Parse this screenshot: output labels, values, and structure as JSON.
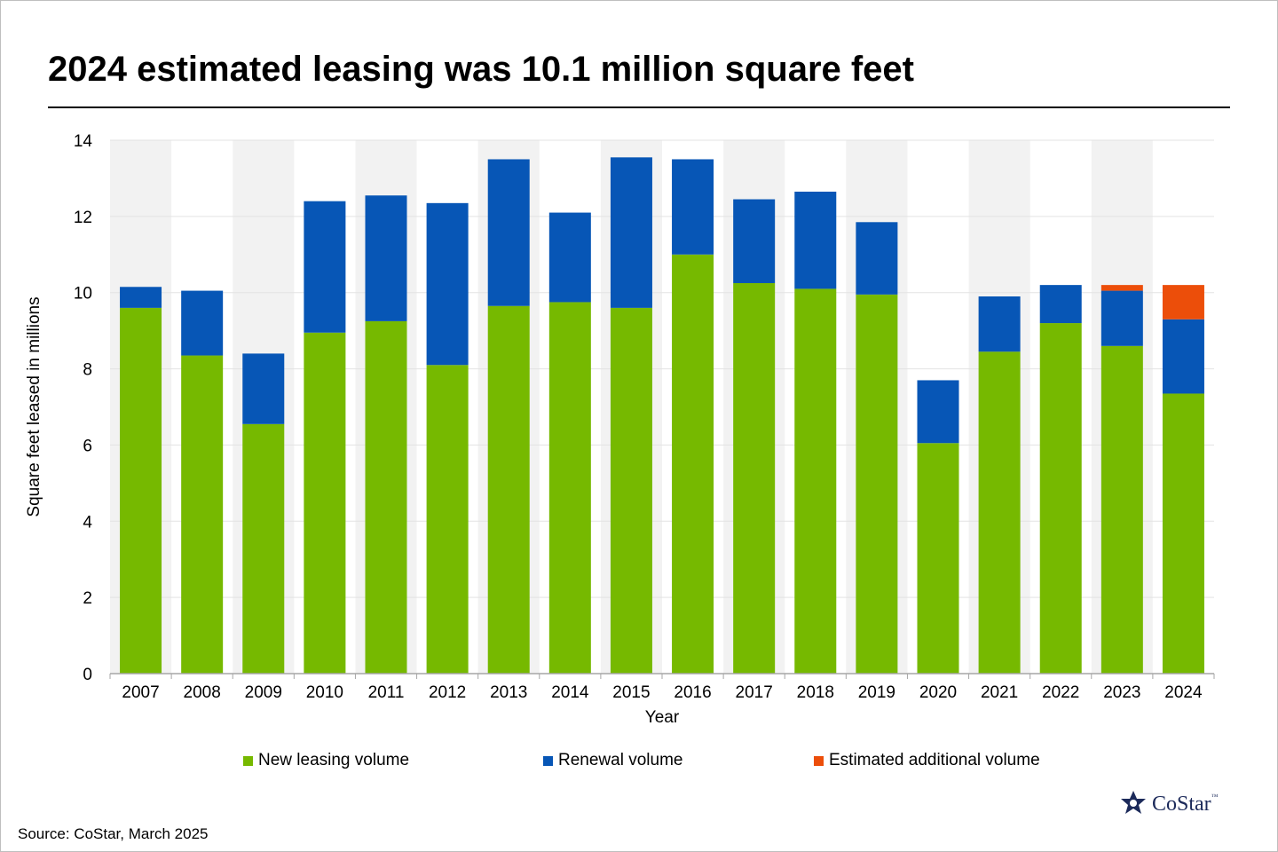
{
  "title": "2024 estimated leasing was 10.1 million square feet",
  "source": "Source: CoStar, March 2025",
  "logo": {
    "text": "CoStar",
    "tm": "™"
  },
  "colors": {
    "new": "#76b900",
    "renewal": "#0756b6",
    "estimated": "#ec4e0a",
    "band": "#f2f2f2",
    "grid": "#e3e3e3",
    "axis": "#a6a6a6",
    "logo": "#1c2a5a"
  },
  "legend": [
    {
      "label": "New leasing volume",
      "color": "#76b900"
    },
    {
      "label": "Renewal volume",
      "color": "#0756b6"
    },
    {
      "label": "Estimated additional volume",
      "color": "#ec4e0a"
    }
  ],
  "chart_data": {
    "type": "bar",
    "stacked": true,
    "title": "2024 estimated leasing was 10.1 million square feet",
    "xlabel": "Year",
    "ylabel": "Square feet leased in millions",
    "ylim": [
      0,
      14
    ],
    "yticks": [
      0,
      2,
      4,
      6,
      8,
      10,
      12,
      14
    ],
    "grid": true,
    "legend_position": "bottom",
    "categories": [
      "2007",
      "2008",
      "2009",
      "2010",
      "2011",
      "2012",
      "2013",
      "2014",
      "2015",
      "2016",
      "2017",
      "2018",
      "2019",
      "2020",
      "2021",
      "2022",
      "2023",
      "2024"
    ],
    "series": [
      {
        "name": "New leasing volume",
        "values": [
          9.6,
          8.35,
          6.55,
          8.95,
          9.25,
          8.1,
          9.65,
          9.75,
          9.6,
          11.0,
          10.25,
          10.1,
          9.95,
          6.05,
          8.45,
          9.2,
          8.6,
          7.35
        ]
      },
      {
        "name": "Renewal volume",
        "values": [
          0.55,
          1.7,
          1.85,
          3.45,
          3.3,
          4.25,
          3.85,
          2.35,
          3.95,
          2.5,
          2.2,
          2.55,
          1.9,
          1.65,
          1.45,
          1.0,
          1.45,
          1.95
        ]
      },
      {
        "name": "Estimated additional volume",
        "values": [
          0,
          0,
          0,
          0,
          0,
          0,
          0,
          0,
          0,
          0,
          0,
          0,
          0,
          0,
          0,
          0,
          0.15,
          0.9
        ]
      }
    ]
  }
}
